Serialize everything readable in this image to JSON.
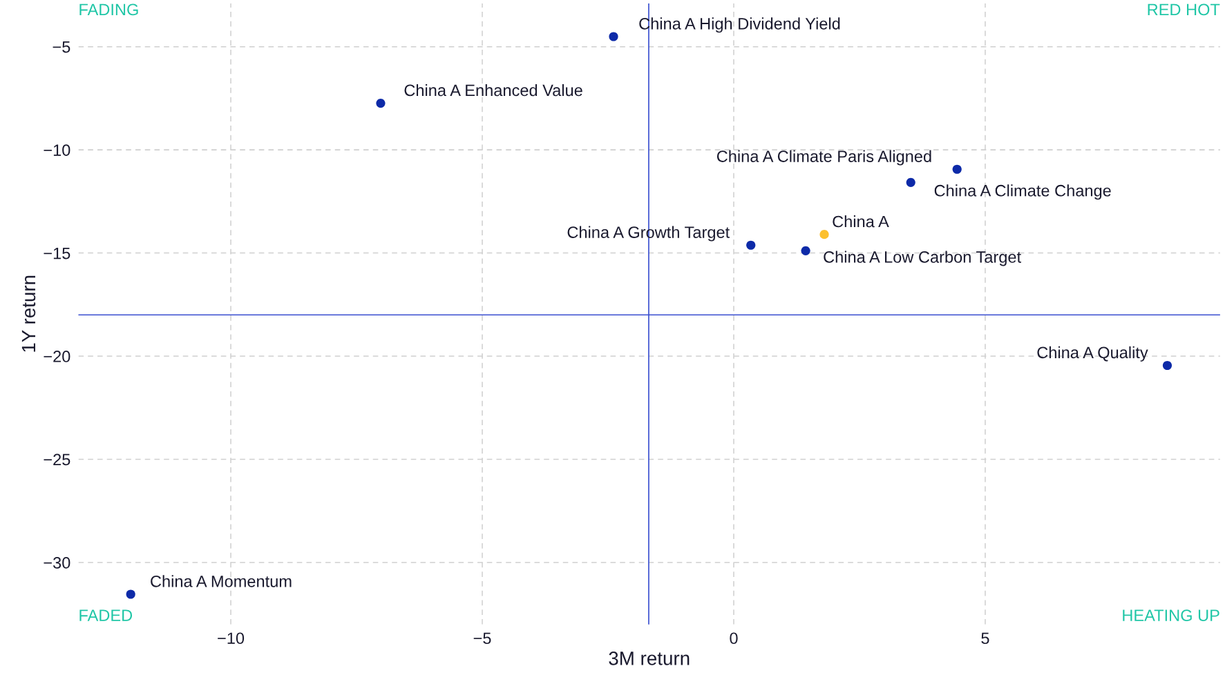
{
  "chart_data": {
    "type": "scatter",
    "xlabel": "3M return",
    "ylabel": "1Y return",
    "xlim": [
      -13.03,
      9.67
    ],
    "ylim": [
      -33,
      -2.9
    ],
    "xticks": [
      -10,
      -5,
      0,
      5
    ],
    "yticks": [
      -30,
      -25,
      -20,
      -15,
      -10,
      -5
    ],
    "grid": true,
    "legend": false,
    "marker": "circle",
    "series": [
      {
        "name": "China A High Dividend Yield",
        "color": "#0d2aa8",
        "x": [
          -2.39
        ],
        "values": [
          -4.51
        ]
      },
      {
        "name": "China A Enhanced Value",
        "color": "#0d2aa8",
        "x": [
          -7.02
        ],
        "values": [
          -7.74
        ]
      },
      {
        "name": "China A Climate Paris Aligned",
        "color": "#0d2aa8",
        "x": [
          4.44
        ],
        "values": [
          -10.94
        ]
      },
      {
        "name": "China A Climate Change",
        "color": "#0d2aa8",
        "x": [
          3.52
        ],
        "values": [
          -11.58
        ]
      },
      {
        "name": "China A",
        "color": "#fcc02e",
        "x": [
          1.8
        ],
        "values": [
          -14.1
        ]
      },
      {
        "name": "China A Growth Target",
        "color": "#0d2aa8",
        "x": [
          0.34
        ],
        "values": [
          -14.62
        ]
      },
      {
        "name": "China A Low Carbon Target",
        "color": "#0d2aa8",
        "x": [
          1.43
        ],
        "values": [
          -14.89
        ]
      },
      {
        "name": "China A Quality",
        "color": "#0d2aa8",
        "x": [
          8.62
        ],
        "values": [
          -20.45
        ]
      },
      {
        "name": "China A Momentum",
        "color": "#0d2aa8",
        "x": [
          -11.99
        ],
        "values": [
          -31.54
        ]
      }
    ],
    "ref_lines": [
      {
        "axis": "x",
        "value": -1.69,
        "color": "#3a4fd0"
      },
      {
        "axis": "y",
        "value": -18.0,
        "color": "#3a4fd0"
      }
    ],
    "annotations": [
      "FADING",
      "RED HOT",
      "FADED",
      "HEATING UP"
    ]
  }
}
